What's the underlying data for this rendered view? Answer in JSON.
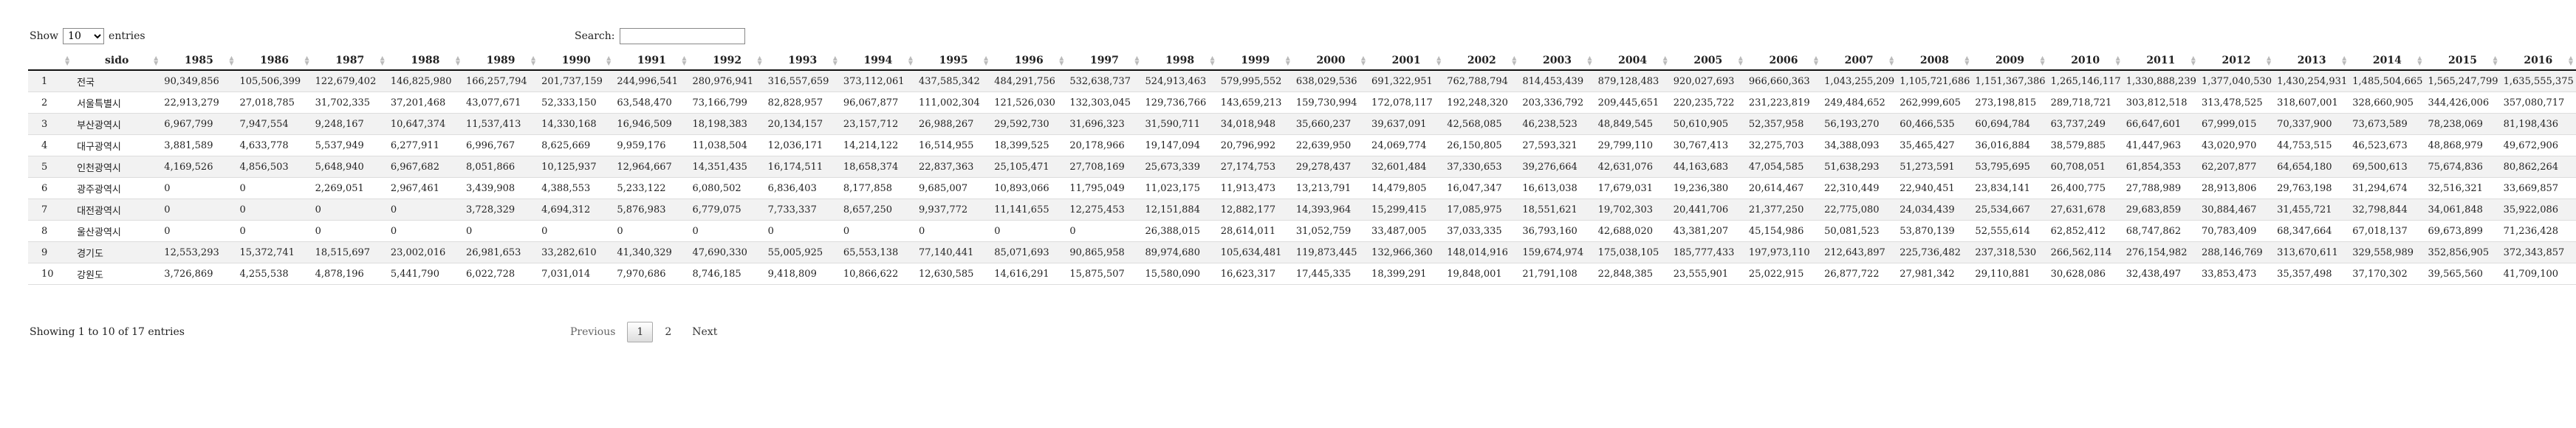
{
  "controls": {
    "show_label": "Show",
    "length_value": "10",
    "entries_label": "entries",
    "search_label": "Search:",
    "search_value": ""
  },
  "table": {
    "index_header": "",
    "sido_header": "sido",
    "year_headers": [
      "1985",
      "1986",
      "1987",
      "1988",
      "1989",
      "1990",
      "1991",
      "1992",
      "1993",
      "1994",
      "1995",
      "1996",
      "1997",
      "1998",
      "1999",
      "2000",
      "2001",
      "2002",
      "2003",
      "2004",
      "2005",
      "2006",
      "2007",
      "2008",
      "2009",
      "2010",
      "2011",
      "2012",
      "2013",
      "2014",
      "2015",
      "2016"
    ],
    "rows": [
      {
        "idx": "1",
        "sido": "전국",
        "values": [
          "90,349,856",
          "105,506,399",
          "122,679,402",
          "146,825,980",
          "166,257,794",
          "201,737,159",
          "244,996,541",
          "280,976,941",
          "316,557,659",
          "373,112,061",
          "437,585,342",
          "484,291,756",
          "532,638,737",
          "524,913,463",
          "579,995,552",
          "638,029,536",
          "691,322,951",
          "762,788,794",
          "814,453,439",
          "879,128,483",
          "920,027,693",
          "966,660,363",
          "1,043,255,209",
          "1,105,721,686",
          "1,151,367,386",
          "1,265,146,117",
          "1,330,888,239",
          "1,377,040,530",
          "1,430,254,931",
          "1,485,504,665",
          "1,565,247,799",
          "1,635,555,375"
        ]
      },
      {
        "idx": "2",
        "sido": "서울특별시",
        "values": [
          "22,913,279",
          "27,018,785",
          "31,702,335",
          "37,201,468",
          "43,077,671",
          "52,333,150",
          "63,548,470",
          "73,166,799",
          "82,828,957",
          "96,067,877",
          "111,002,304",
          "121,526,030",
          "132,303,045",
          "129,736,766",
          "143,659,213",
          "159,730,994",
          "172,078,117",
          "192,248,320",
          "203,336,792",
          "209,445,651",
          "220,235,722",
          "231,223,819",
          "249,484,652",
          "262,999,605",
          "273,198,815",
          "289,718,721",
          "303,812,518",
          "313,478,525",
          "318,607,001",
          "328,660,905",
          "344,426,006",
          "357,080,717"
        ]
      },
      {
        "idx": "3",
        "sido": "부산광역시",
        "values": [
          "6,967,799",
          "7,947,554",
          "9,248,167",
          "10,647,374",
          "11,537,413",
          "14,330,168",
          "16,946,509",
          "18,198,383",
          "20,134,157",
          "23,157,712",
          "26,988,267",
          "29,592,730",
          "31,696,323",
          "31,590,711",
          "34,018,948",
          "35,660,237",
          "39,637,091",
          "42,568,085",
          "46,238,523",
          "48,849,545",
          "50,610,905",
          "52,357,958",
          "56,193,270",
          "60,466,535",
          "60,694,784",
          "63,737,249",
          "66,647,601",
          "67,999,015",
          "70,337,900",
          "73,673,589",
          "78,238,069",
          "81,198,436"
        ]
      },
      {
        "idx": "4",
        "sido": "대구광역시",
        "values": [
          "3,881,589",
          "4,633,778",
          "5,537,949",
          "6,277,911",
          "6,996,767",
          "8,625,669",
          "9,959,176",
          "11,038,504",
          "12,036,171",
          "14,214,122",
          "16,514,955",
          "18,399,525",
          "20,178,966",
          "19,147,094",
          "20,796,992",
          "22,639,950",
          "24,069,774",
          "26,150,805",
          "27,593,321",
          "29,799,110",
          "30,767,413",
          "32,275,703",
          "34,388,093",
          "35,465,427",
          "36,016,884",
          "38,579,885",
          "41,447,963",
          "43,020,970",
          "44,753,515",
          "46,523,673",
          "48,868,979",
          "49,672,906"
        ]
      },
      {
        "idx": "5",
        "sido": "인천광역시",
        "values": [
          "4,169,526",
          "4,856,503",
          "5,648,940",
          "6,967,682",
          "8,051,866",
          "10,125,937",
          "12,964,667",
          "14,351,435",
          "16,174,511",
          "18,658,374",
          "22,837,363",
          "25,105,471",
          "27,708,169",
          "25,673,339",
          "27,174,753",
          "29,278,437",
          "32,601,484",
          "37,330,653",
          "39,276,664",
          "42,631,076",
          "44,163,683",
          "47,054,585",
          "51,638,293",
          "51,273,591",
          "53,795,695",
          "60,708,051",
          "61,854,353",
          "62,207,877",
          "64,654,180",
          "69,500,613",
          "75,674,836",
          "80,862,264"
        ]
      },
      {
        "idx": "6",
        "sido": "광주광역시",
        "values": [
          "0",
          "0",
          "2,269,051",
          "2,967,461",
          "3,439,908",
          "4,388,553",
          "5,233,122",
          "6,080,502",
          "6,836,403",
          "8,177,858",
          "9,685,007",
          "10,893,066",
          "11,795,049",
          "11,023,175",
          "11,913,473",
          "13,213,791",
          "14,479,805",
          "16,047,347",
          "16,613,038",
          "17,679,031",
          "19,236,380",
          "20,614,467",
          "22,310,449",
          "22,940,451",
          "23,834,141",
          "26,400,775",
          "27,788,989",
          "28,913,806",
          "29,763,198",
          "31,294,674",
          "32,516,321",
          "33,669,857"
        ]
      },
      {
        "idx": "7",
        "sido": "대전광역시",
        "values": [
          "0",
          "0",
          "0",
          "0",
          "3,728,329",
          "4,694,312",
          "5,876,983",
          "6,779,075",
          "7,733,337",
          "8,657,250",
          "9,937,772",
          "11,141,655",
          "12,275,453",
          "12,151,884",
          "12,882,177",
          "14,393,964",
          "15,299,415",
          "17,085,975",
          "18,551,621",
          "19,702,303",
          "20,441,706",
          "21,377,250",
          "22,775,080",
          "24,034,439",
          "25,534,667",
          "27,631,678",
          "29,683,859",
          "30,884,467",
          "31,455,721",
          "32,798,844",
          "34,061,848",
          "35,922,086"
        ]
      },
      {
        "idx": "8",
        "sido": "울산광역시",
        "values": [
          "0",
          "0",
          "0",
          "0",
          "0",
          "0",
          "0",
          "0",
          "0",
          "0",
          "0",
          "0",
          "0",
          "26,388,015",
          "28,614,011",
          "31,052,759",
          "33,487,005",
          "37,033,335",
          "36,793,160",
          "42,688,020",
          "43,381,207",
          "45,154,986",
          "50,081,523",
          "53,870,139",
          "52,555,614",
          "62,852,412",
          "68,747,862",
          "70,783,409",
          "68,347,664",
          "67,018,137",
          "69,673,899",
          "71,236,428"
        ]
      },
      {
        "idx": "9",
        "sido": "경기도",
        "values": [
          "12,553,293",
          "15,372,741",
          "18,515,697",
          "23,002,016",
          "26,981,653",
          "33,282,610",
          "41,340,329",
          "47,690,330",
          "55,005,925",
          "65,553,138",
          "77,140,441",
          "85,071,693",
          "90,865,958",
          "89,974,680",
          "105,634,481",
          "119,873,445",
          "132,966,360",
          "148,014,916",
          "159,674,974",
          "175,038,105",
          "185,777,433",
          "197,973,110",
          "212,643,897",
          "225,736,482",
          "237,318,530",
          "266,562,114",
          "276,154,982",
          "288,146,769",
          "313,670,611",
          "329,558,989",
          "352,856,905",
          "372,343,857"
        ]
      },
      {
        "idx": "10",
        "sido": "강원도",
        "values": [
          "3,726,869",
          "4,255,538",
          "4,878,196",
          "5,441,790",
          "6,022,728",
          "7,031,014",
          "7,970,686",
          "8,746,185",
          "9,418,809",
          "10,866,622",
          "12,630,585",
          "14,616,291",
          "15,875,507",
          "15,580,090",
          "16,623,317",
          "17,445,335",
          "18,399,291",
          "19,848,001",
          "21,791,108",
          "22,848,385",
          "23,555,901",
          "25,022,915",
          "26,877,722",
          "27,981,342",
          "29,110,881",
          "30,628,086",
          "32,438,497",
          "33,853,473",
          "35,357,498",
          "37,170,302",
          "39,565,560",
          "41,709,100"
        ]
      }
    ]
  },
  "footer": {
    "info": "Showing 1 to 10 of 17 entries",
    "previous": "Previous",
    "pages": [
      "1",
      "2"
    ],
    "next": "Next"
  }
}
